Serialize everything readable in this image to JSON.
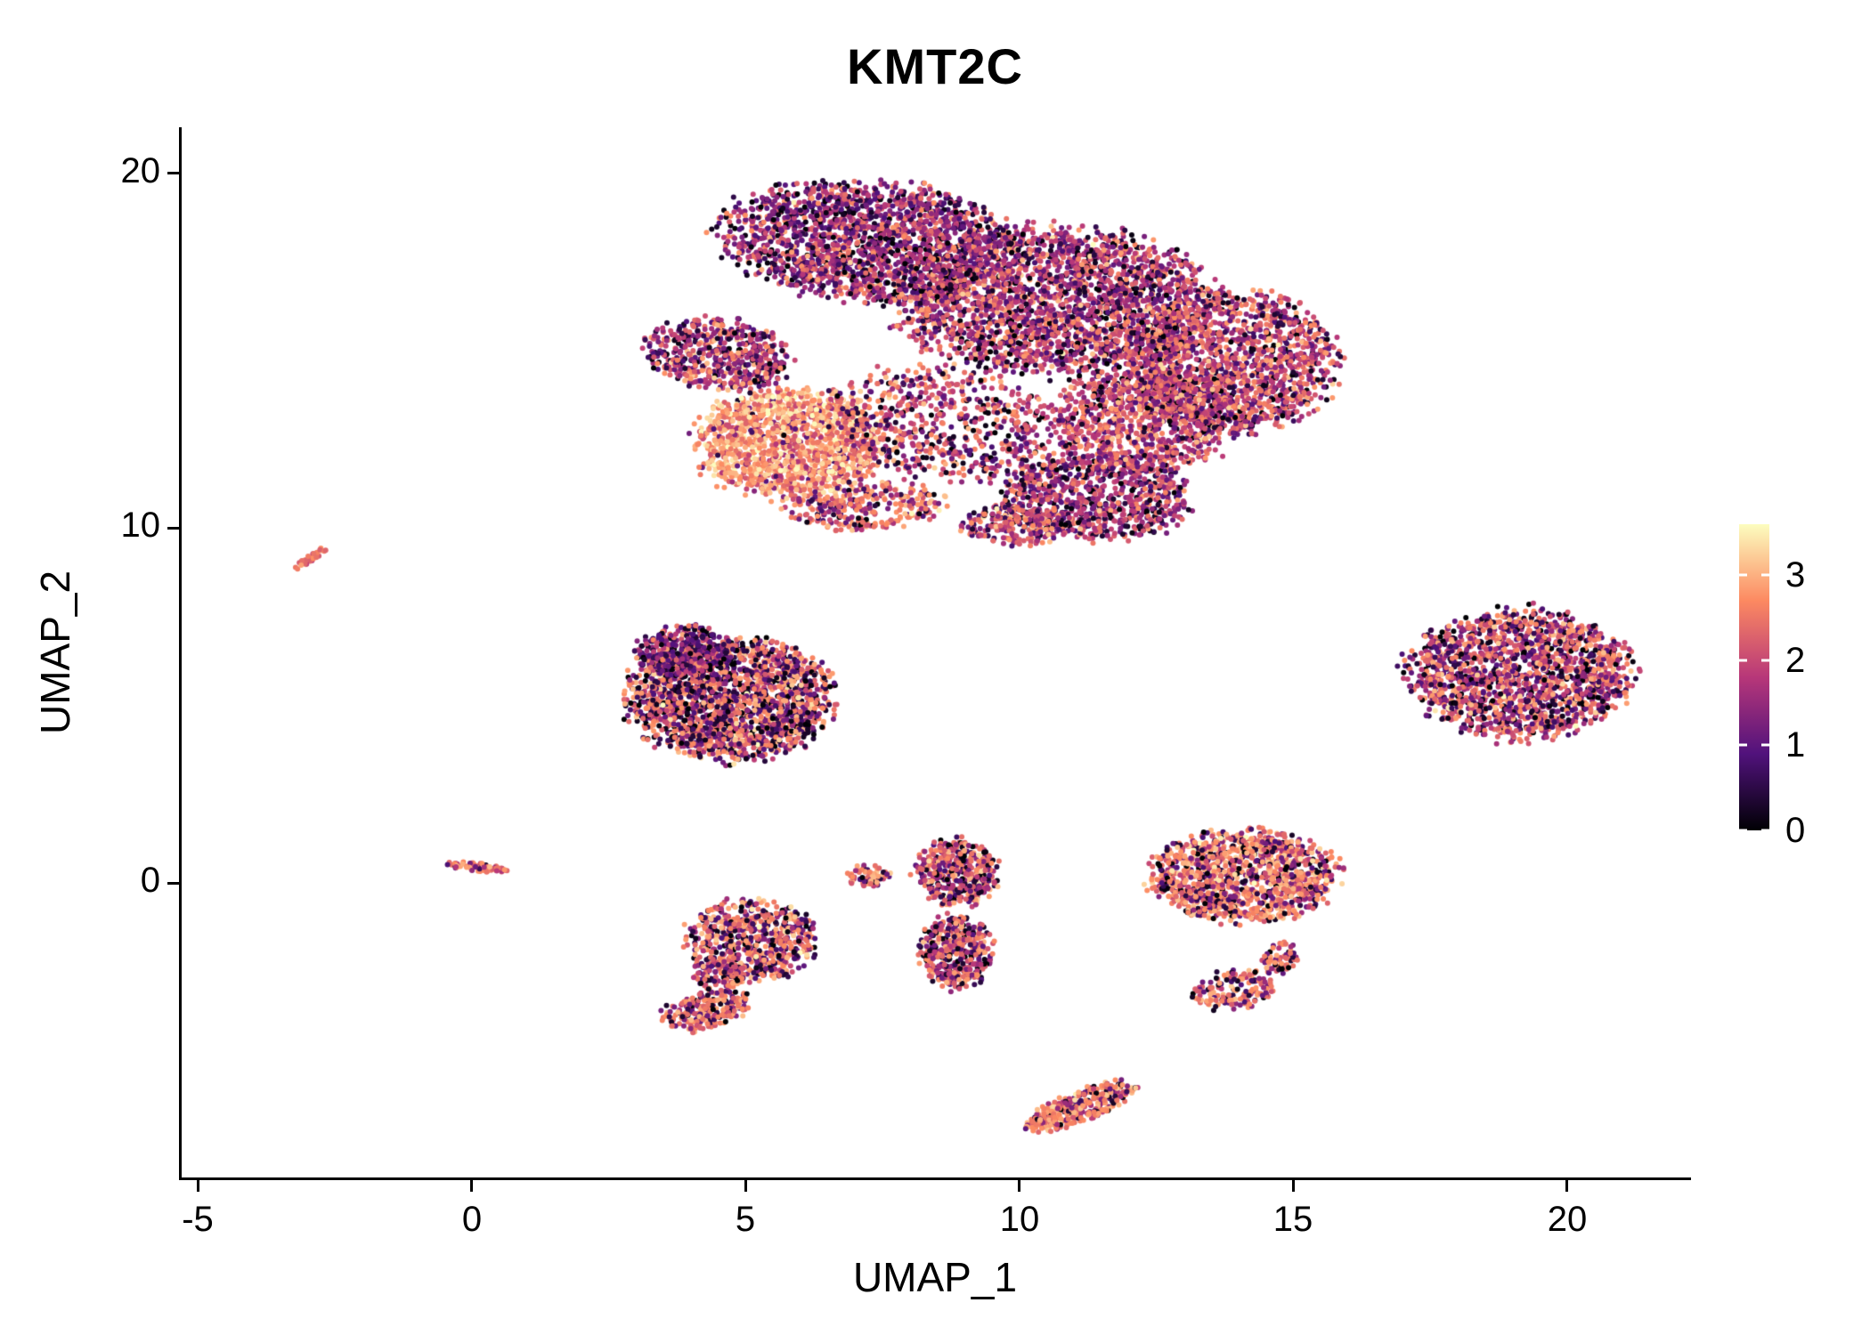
{
  "title": "KMT2C",
  "colors": {
    "text": "#000000",
    "axis": "#000000",
    "background": "#ffffff"
  },
  "chart_data": {
    "type": "scatter",
    "title": "KMT2C",
    "xlabel": "UMAP_1",
    "ylabel": "UMAP_2",
    "xlim": [
      -5.3,
      22.2
    ],
    "ylim": [
      -8.3,
      21.3
    ],
    "x_ticks": [
      -5,
      0,
      5,
      10,
      15,
      20
    ],
    "y_ticks": [
      0,
      10,
      20
    ],
    "grid": false,
    "legend": {
      "type": "colorbar",
      "position": "right",
      "ticks": [
        0,
        1,
        2,
        3
      ],
      "range": [
        0,
        3.6
      ],
      "colormap": "magma",
      "stops": [
        "#000004",
        "#51127c",
        "#b73779",
        "#fc8961",
        "#fcfdbf"
      ]
    },
    "point_radius_px": 3,
    "seed": 1337,
    "clusters": [
      {
        "id": "main-top-left",
        "cx": 7.2,
        "cy": 18.1,
        "rx": 2.7,
        "ry": 1.7,
        "rot": -8,
        "n": 1900,
        "expr": [
          [
            1.2,
            0.5,
            0.55
          ],
          [
            2.3,
            0.4,
            0.33
          ],
          [
            0.1,
            0.15,
            0.12
          ]
        ]
      },
      {
        "id": "main-center",
        "cx": 10.6,
        "cy": 16.4,
        "rx": 2.9,
        "ry": 2.1,
        "rot": 0,
        "n": 2500,
        "expr": [
          [
            1.4,
            0.55,
            0.52
          ],
          [
            2.35,
            0.45,
            0.36
          ],
          [
            0.15,
            0.2,
            0.12
          ]
        ]
      },
      {
        "id": "main-right",
        "cx": 13.9,
        "cy": 14.7,
        "rx": 1.9,
        "ry": 2.0,
        "rot": 0,
        "n": 1500,
        "expr": [
          [
            2.4,
            0.4,
            0.45
          ],
          [
            1.5,
            0.5,
            0.4
          ],
          [
            0.3,
            0.3,
            0.15
          ]
        ]
      },
      {
        "id": "main-bright-lobe",
        "cx": 5.8,
        "cy": 12.4,
        "rx": 1.75,
        "ry": 1.55,
        "rot": 0,
        "n": 1500,
        "expr": [
          [
            3.0,
            0.35,
            0.66
          ],
          [
            2.3,
            0.3,
            0.26
          ],
          [
            1.2,
            0.4,
            0.08
          ]
        ]
      },
      {
        "id": "main-left-tip",
        "cx": 4.5,
        "cy": 14.9,
        "rx": 1.35,
        "ry": 1.0,
        "rot": -15,
        "n": 600,
        "expr": [
          [
            1.3,
            0.5,
            0.55
          ],
          [
            2.5,
            0.4,
            0.33
          ],
          [
            0.2,
            0.2,
            0.12
          ]
        ]
      },
      {
        "id": "main-middle-sparse",
        "cx": 8.7,
        "cy": 12.9,
        "rx": 2.3,
        "ry": 1.6,
        "rot": -20,
        "n": 650,
        "expr": [
          [
            1.5,
            0.6,
            0.4
          ],
          [
            2.4,
            0.4,
            0.42
          ],
          [
            0.3,
            0.3,
            0.18
          ]
        ]
      },
      {
        "id": "main-bottom-center",
        "cx": 11.4,
        "cy": 10.9,
        "rx": 1.8,
        "ry": 1.25,
        "rot": 0,
        "n": 850,
        "expr": [
          [
            1.3,
            0.5,
            0.5
          ],
          [
            2.25,
            0.4,
            0.35
          ],
          [
            0.2,
            0.2,
            0.15
          ]
        ]
      },
      {
        "id": "main-mid-right",
        "cx": 12.3,
        "cy": 13.1,
        "rx": 1.7,
        "ry": 1.5,
        "rot": 0,
        "n": 950,
        "expr": [
          [
            1.6,
            0.5,
            0.45
          ],
          [
            2.4,
            0.4,
            0.44
          ],
          [
            0.2,
            0.2,
            0.11
          ]
        ]
      },
      {
        "id": "main-bottom-strip",
        "cx": 7.2,
        "cy": 10.6,
        "rx": 1.5,
        "ry": 0.65,
        "rot": 5,
        "n": 300,
        "expr": [
          [
            2.7,
            0.35,
            0.6
          ],
          [
            1.5,
            0.5,
            0.3
          ],
          [
            0.3,
            0.3,
            0.1
          ]
        ]
      },
      {
        "id": "main-bottom-notch",
        "cx": 9.9,
        "cy": 10.1,
        "rx": 1.0,
        "ry": 0.6,
        "rot": 0,
        "n": 220,
        "expr": [
          [
            1.6,
            0.5,
            0.45
          ],
          [
            2.5,
            0.35,
            0.4
          ],
          [
            0.3,
            0.3,
            0.15
          ]
        ]
      },
      {
        "id": "streak-far-left",
        "cx": -2.95,
        "cy": 9.15,
        "rx": 0.45,
        "ry": 0.09,
        "rot": 48,
        "n": 38,
        "expr": [
          [
            2.6,
            0.25,
            0.85
          ],
          [
            1.6,
            0.3,
            0.15
          ]
        ]
      },
      {
        "id": "mid-left",
        "cx": 4.7,
        "cy": 5.2,
        "rx": 1.9,
        "ry": 1.75,
        "rot": 0,
        "n": 2000,
        "expr": [
          [
            2.6,
            0.35,
            0.44
          ],
          [
            1.1,
            0.5,
            0.36
          ],
          [
            0.2,
            0.25,
            0.2
          ]
        ]
      },
      {
        "id": "mid-left-dark-cap",
        "cx": 3.9,
        "cy": 6.5,
        "rx": 0.95,
        "ry": 0.75,
        "rot": -20,
        "n": 320,
        "expr": [
          [
            1.0,
            0.4,
            0.6
          ],
          [
            2.2,
            0.4,
            0.25
          ],
          [
            0.15,
            0.2,
            0.15
          ]
        ]
      },
      {
        "id": "right-cluster",
        "cx": 19.1,
        "cy": 5.9,
        "rx": 2.05,
        "ry": 1.85,
        "rot": 0,
        "n": 1700,
        "expr": [
          [
            2.5,
            0.4,
            0.42
          ],
          [
            1.2,
            0.5,
            0.38
          ],
          [
            0.25,
            0.3,
            0.2
          ]
        ]
      },
      {
        "id": "streak-at-zero",
        "cx": 0.1,
        "cy": 0.45,
        "rx": 0.55,
        "ry": 0.12,
        "rot": -8,
        "n": 70,
        "expr": [
          [
            2.6,
            0.3,
            0.75
          ],
          [
            1.5,
            0.4,
            0.2
          ],
          [
            0.3,
            0.2,
            0.05
          ]
        ]
      },
      {
        "id": "lower-left-main",
        "cx": 5.1,
        "cy": -1.6,
        "rx": 1.2,
        "ry": 1.15,
        "rot": 0,
        "n": 620,
        "expr": [
          [
            2.6,
            0.35,
            0.55
          ],
          [
            1.2,
            0.5,
            0.3
          ],
          [
            0.25,
            0.25,
            0.15
          ]
        ]
      },
      {
        "id": "lower-left-tail",
        "cx": 4.25,
        "cy": -3.6,
        "rx": 0.9,
        "ry": 0.5,
        "rot": 25,
        "n": 230,
        "expr": [
          [
            2.6,
            0.3,
            0.6
          ],
          [
            1.4,
            0.4,
            0.25
          ],
          [
            0.3,
            0.3,
            0.15
          ]
        ]
      },
      {
        "id": "lower-left-bridge",
        "cx": 4.5,
        "cy": -2.6,
        "rx": 0.5,
        "ry": 0.45,
        "rot": 0,
        "n": 110,
        "expr": [
          [
            2.5,
            0.35,
            0.55
          ],
          [
            1.3,
            0.45,
            0.3
          ],
          [
            0.3,
            0.25,
            0.15
          ]
        ]
      },
      {
        "id": "tiny-center",
        "cx": 7.25,
        "cy": 0.2,
        "rx": 0.42,
        "ry": 0.33,
        "rot": 0,
        "n": 70,
        "expr": [
          [
            2.7,
            0.3,
            0.7
          ],
          [
            1.3,
            0.4,
            0.2
          ],
          [
            0.2,
            0.2,
            0.1
          ]
        ]
      },
      {
        "id": "center-upper",
        "cx": 8.85,
        "cy": 0.3,
        "rx": 0.78,
        "ry": 0.95,
        "rot": 0,
        "n": 430,
        "expr": [
          [
            2.5,
            0.4,
            0.55
          ],
          [
            1.3,
            0.5,
            0.3
          ],
          [
            0.2,
            0.25,
            0.15
          ]
        ]
      },
      {
        "id": "center-lower",
        "cx": 8.85,
        "cy": -1.95,
        "rx": 0.68,
        "ry": 1.05,
        "rot": 0,
        "n": 390,
        "expr": [
          [
            2.5,
            0.4,
            0.5
          ],
          [
            1.2,
            0.5,
            0.33
          ],
          [
            0.25,
            0.25,
            0.17
          ]
        ]
      },
      {
        "id": "right-mid",
        "cx": 14.1,
        "cy": 0.2,
        "rx": 1.75,
        "ry": 1.3,
        "rot": 0,
        "n": 1250,
        "expr": [
          [
            2.7,
            0.35,
            0.58
          ],
          [
            1.4,
            0.5,
            0.26
          ],
          [
            0.3,
            0.3,
            0.16
          ]
        ]
      },
      {
        "id": "right-mid-hook",
        "cx": 13.9,
        "cy": -3.0,
        "rx": 0.8,
        "ry": 0.55,
        "rot": 20,
        "n": 150,
        "expr": [
          [
            2.6,
            0.3,
            0.6
          ],
          [
            1.3,
            0.4,
            0.25
          ],
          [
            0.3,
            0.25,
            0.15
          ]
        ]
      },
      {
        "id": "right-mid-hook-tip",
        "cx": 14.75,
        "cy": -2.15,
        "rx": 0.35,
        "ry": 0.5,
        "rot": 0,
        "n": 60,
        "expr": [
          [
            2.6,
            0.3,
            0.6
          ],
          [
            1.3,
            0.4,
            0.25
          ],
          [
            0.3,
            0.25,
            0.15
          ]
        ]
      },
      {
        "id": "bottom-cluster",
        "cx": 11.1,
        "cy": -6.3,
        "rx": 1.2,
        "ry": 0.4,
        "rot": 32,
        "n": 330,
        "expr": [
          [
            2.7,
            0.3,
            0.65
          ],
          [
            1.5,
            0.4,
            0.22
          ],
          [
            0.3,
            0.25,
            0.13
          ]
        ]
      }
    ]
  }
}
